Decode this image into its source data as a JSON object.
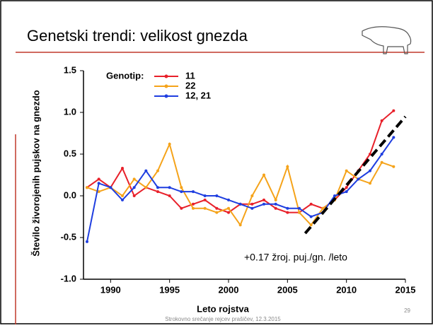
{
  "slide_title": "Genetski trendi: velikost gnezda",
  "footer": "Strokovno srečanje rejcev prašičev, 12.3.2015",
  "page_number": "29",
  "chart_data": {
    "type": "line",
    "x_label": "Leto rojstva",
    "y_label": "Število živorojenih pujskov na gnezdo",
    "legend_title": "Genotip:",
    "annotation": "+0.17 žroj. puj./gn. /leto",
    "x": [
      1988,
      1989,
      1990,
      1991,
      1992,
      1993,
      1994,
      1995,
      1996,
      1997,
      1998,
      1999,
      2000,
      2001,
      2002,
      2003,
      2004,
      2005,
      2006,
      2007,
      2008,
      2009,
      2010,
      2011,
      2012,
      2013,
      2014
    ],
    "series": [
      {
        "name": "11",
        "color": "#e8202a",
        "values": [
          0.1,
          0.2,
          0.1,
          0.33,
          0.0,
          0.1,
          0.05,
          0.0,
          -0.15,
          -0.1,
          -0.05,
          -0.15,
          -0.2,
          -0.1,
          -0.1,
          -0.05,
          -0.15,
          -0.2,
          -0.2,
          -0.1,
          -0.15,
          -0.05,
          0.1,
          0.3,
          0.5,
          0.9,
          1.02
        ]
      },
      {
        "name": "22",
        "color": "#f5a31a",
        "values": [
          0.1,
          0.05,
          0.1,
          0.0,
          0.2,
          0.1,
          0.3,
          0.62,
          0.1,
          -0.15,
          -0.15,
          -0.2,
          -0.15,
          -0.35,
          0.0,
          0.25,
          -0.05,
          0.35,
          -0.2,
          -0.35,
          -0.15,
          -0.05,
          0.3,
          0.2,
          0.15,
          0.4,
          0.35
        ]
      },
      {
        "name": "12, 21",
        "color": "#1f3ee0",
        "values": [
          -0.55,
          0.15,
          0.1,
          -0.05,
          0.1,
          0.3,
          0.1,
          0.1,
          0.05,
          0.05,
          0.0,
          0.0,
          -0.05,
          -0.1,
          -0.15,
          -0.1,
          -0.1,
          -0.15,
          -0.15,
          -0.25,
          -0.2,
          0.0,
          0.05,
          0.2,
          0.3,
          0.5,
          0.7
        ]
      }
    ],
    "trend_line": {
      "x": [
        2006.5,
        2015
      ],
      "y": [
        -0.45,
        0.95
      ]
    },
    "xlim": [
      1987.7,
      2015
    ],
    "xticks": [
      1990,
      1995,
      2000,
      2005,
      2010,
      2015
    ],
    "ylim": [
      -1,
      1.5
    ],
    "yticks": [
      1.5,
      {
        "value": 1,
        "label": "1.0"
      },
      0.5,
      {
        "value": 0,
        "label": "0.0"
      },
      -0.5,
      {
        "value": -1,
        "label": "-1.0"
      }
    ]
  }
}
